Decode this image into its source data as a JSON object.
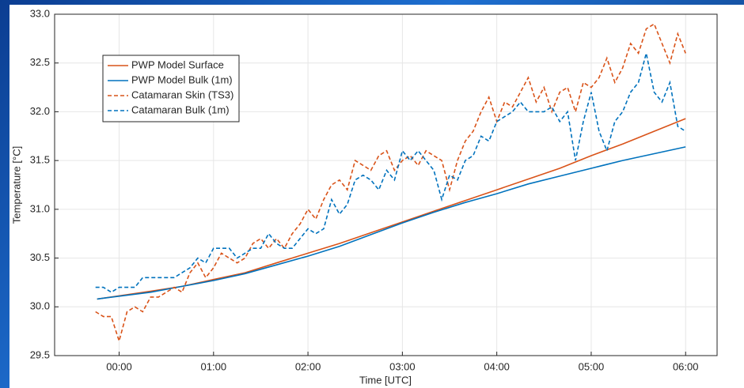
{
  "chart_data": {
    "type": "line",
    "xlabel": "Time [UTC]",
    "ylabel": "Temperature [°C]",
    "xlim": [
      -41,
      380
    ],
    "ylim": [
      29.5,
      33.0
    ],
    "xticks": [
      {
        "value": 0,
        "label": "00:00"
      },
      {
        "value": 60,
        "label": "01:00"
      },
      {
        "value": 120,
        "label": "02:00"
      },
      {
        "value": 180,
        "label": "03:00"
      },
      {
        "value": 240,
        "label": "04:00"
      },
      {
        "value": 300,
        "label": "05:00"
      },
      {
        "value": 360,
        "label": "06:00"
      }
    ],
    "yticks": [
      {
        "value": 29.5,
        "label": "29.5"
      },
      {
        "value": 30.0,
        "label": "30.0"
      },
      {
        "value": 30.5,
        "label": "30.5"
      },
      {
        "value": 31.0,
        "label": "31.0"
      },
      {
        "value": 31.5,
        "label": "31.5"
      },
      {
        "value": 32.0,
        "label": "32.0"
      },
      {
        "value": 32.5,
        "label": "32.5"
      },
      {
        "value": 33.0,
        "label": "33.0"
      }
    ],
    "grid": true,
    "legend": "upper left",
    "series": [
      {
        "name": "PWP Model Surface",
        "color": "#d95319",
        "dashed": false,
        "x": [
          -14,
          20,
          40,
          60,
          80,
          100,
          120,
          140,
          160,
          180,
          200,
          220,
          240,
          260,
          280,
          300,
          320,
          340,
          360
        ],
        "values": [
          30.08,
          30.16,
          30.21,
          30.28,
          30.35,
          30.45,
          30.55,
          30.65,
          30.76,
          30.87,
          30.98,
          31.09,
          31.2,
          31.31,
          31.42,
          31.55,
          31.67,
          31.8,
          31.93
        ]
      },
      {
        "name": "PWP Model Bulk (1m)",
        "color": "#0072bd",
        "dashed": false,
        "x": [
          -14,
          20,
          40,
          60,
          80,
          100,
          120,
          140,
          160,
          180,
          200,
          220,
          240,
          260,
          280,
          300,
          320,
          340,
          360
        ],
        "values": [
          30.08,
          30.15,
          30.21,
          30.27,
          30.34,
          30.43,
          30.52,
          30.62,
          30.74,
          30.86,
          30.97,
          31.07,
          31.16,
          31.26,
          31.34,
          31.42,
          31.5,
          31.57,
          31.64
        ]
      },
      {
        "name": "Catamaran Skin (TS3)",
        "color": "#d95319",
        "dashed": true,
        "x": [
          -15,
          -10,
          -5,
          0,
          5,
          10,
          15,
          20,
          25,
          30,
          35,
          40,
          45,
          50,
          55,
          60,
          65,
          70,
          75,
          80,
          85,
          90,
          95,
          100,
          105,
          110,
          115,
          120,
          125,
          130,
          135,
          140,
          145,
          150,
          155,
          160,
          165,
          170,
          175,
          180,
          185,
          190,
          195,
          200,
          205,
          210,
          215,
          220,
          225,
          230,
          235,
          240,
          245,
          250,
          255,
          260,
          265,
          270,
          275,
          280,
          285,
          290,
          295,
          300,
          305,
          310,
          315,
          320,
          325,
          330,
          335,
          340,
          345,
          350,
          355,
          360
        ],
        "values": [
          29.95,
          29.9,
          29.9,
          29.65,
          29.95,
          30.0,
          29.95,
          30.1,
          30.1,
          30.15,
          30.2,
          30.15,
          30.35,
          30.45,
          30.3,
          30.4,
          30.55,
          30.5,
          30.45,
          30.5,
          30.65,
          30.7,
          30.6,
          30.7,
          30.6,
          30.75,
          30.85,
          31.0,
          30.9,
          31.1,
          31.25,
          31.3,
          31.2,
          31.5,
          31.45,
          31.4,
          31.55,
          31.6,
          31.4,
          31.5,
          31.55,
          31.45,
          31.6,
          31.55,
          31.5,
          31.2,
          31.5,
          31.7,
          31.8,
          32.0,
          32.15,
          31.9,
          32.1,
          32.05,
          32.2,
          32.35,
          32.1,
          32.25,
          32.0,
          32.2,
          32.25,
          32.0,
          32.3,
          32.25,
          32.35,
          32.55,
          32.3,
          32.45,
          32.7,
          32.6,
          32.85,
          32.9,
          32.7,
          32.5,
          32.8,
          32.6
        ]
      },
      {
        "name": "Catamaran Bulk (1m)",
        "color": "#0072bd",
        "dashed": true,
        "x": [
          -15,
          -10,
          -5,
          0,
          5,
          10,
          15,
          20,
          25,
          30,
          35,
          40,
          45,
          50,
          55,
          60,
          65,
          70,
          75,
          80,
          85,
          90,
          95,
          100,
          105,
          110,
          115,
          120,
          125,
          130,
          135,
          140,
          145,
          150,
          155,
          160,
          165,
          170,
          175,
          180,
          185,
          190,
          195,
          200,
          205,
          210,
          215,
          220,
          225,
          230,
          235,
          240,
          245,
          250,
          255,
          260,
          265,
          270,
          275,
          280,
          285,
          290,
          295,
          300,
          305,
          310,
          315,
          320,
          325,
          330,
          335,
          340,
          345,
          350,
          355,
          360
        ],
        "values": [
          30.2,
          30.2,
          30.15,
          30.2,
          30.2,
          30.2,
          30.3,
          30.3,
          30.3,
          30.3,
          30.3,
          30.35,
          30.4,
          30.5,
          30.45,
          30.6,
          30.6,
          30.6,
          30.5,
          30.55,
          30.6,
          30.6,
          30.75,
          30.65,
          30.6,
          30.6,
          30.7,
          30.8,
          30.75,
          30.8,
          31.1,
          30.95,
          31.05,
          31.3,
          31.35,
          31.3,
          31.2,
          31.4,
          31.3,
          31.6,
          31.5,
          31.6,
          31.5,
          31.4,
          31.1,
          31.35,
          31.3,
          31.5,
          31.55,
          31.75,
          31.7,
          31.9,
          31.95,
          32.0,
          32.1,
          32.0,
          32.0,
          32.0,
          32.05,
          31.9,
          32.0,
          31.5,
          31.9,
          32.2,
          31.8,
          31.6,
          31.9,
          32.0,
          32.2,
          32.3,
          32.6,
          32.2,
          32.1,
          32.3,
          31.85,
          31.8
        ]
      }
    ]
  }
}
